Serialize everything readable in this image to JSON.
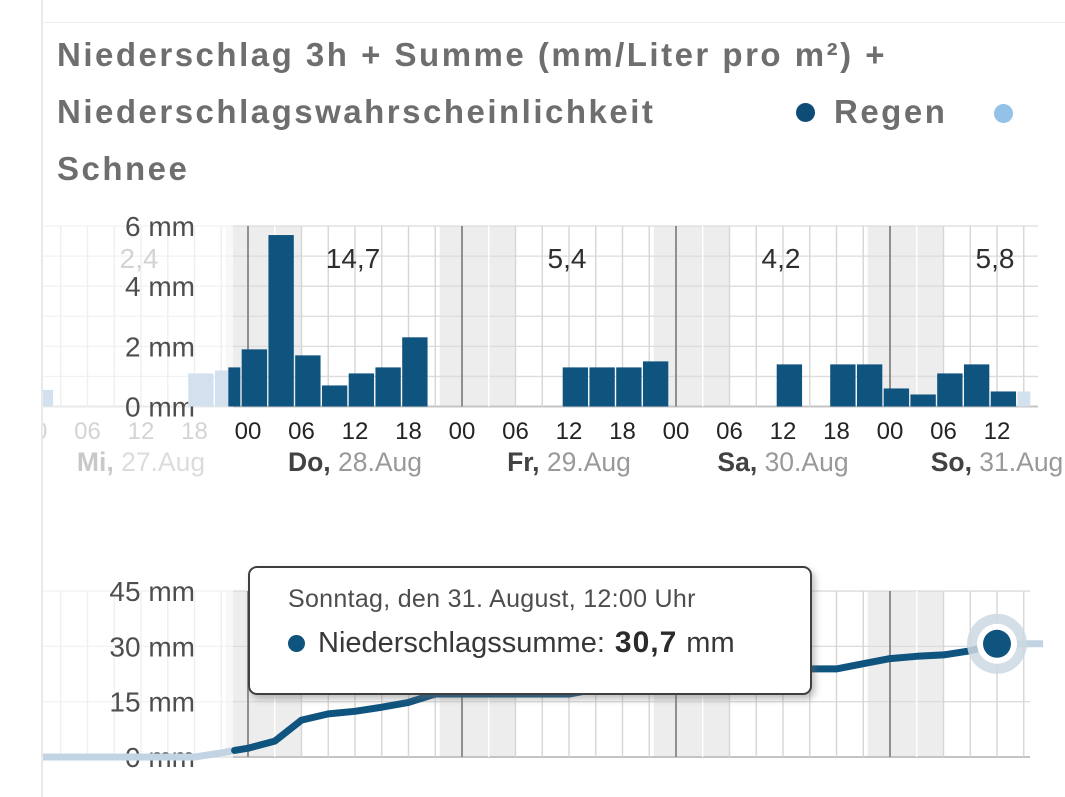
{
  "header": {
    "title_line1": "Niederschlag 3h + Summe (mm/Liter pro m²) +",
    "title_line2": "Niederschlagswahrscheinlichkeit",
    "legend": [
      {
        "label": "Regen",
        "color": "#0d4c77"
      },
      {
        "label": "Schnee",
        "color": "#93c1e7"
      }
    ]
  },
  "tooltip": {
    "title": "Sonntag, den 31. August, 12:00 Uhr",
    "series_label": "Niederschlagssumme:",
    "value": "30,7",
    "unit": "mm"
  },
  "chart_data": [
    {
      "type": "bar",
      "title": "Niederschlag 3h (mm/Liter pro m²)",
      "unit": "mm",
      "ylim": [
        0,
        6
      ],
      "bar_interval_hours": 3,
      "grid": "on",
      "yticks": [
        {
          "mm": 0,
          "label": "0 mm"
        },
        {
          "mm": 2,
          "label": "2 mm"
        },
        {
          "mm": 4,
          "label": "4 mm"
        },
        {
          "mm": 6,
          "label": "6 mm"
        }
      ],
      "hour_ticks": [
        {
          "hour": 0,
          "label": "00"
        },
        {
          "hour": 6,
          "label": "06"
        },
        {
          "hour": 12,
          "label": "12"
        },
        {
          "hour": 18,
          "label": "18"
        }
      ],
      "days": [
        {
          "day": "Mi",
          "date": "27.Aug",
          "sum": "2,4",
          "state": "past"
        },
        {
          "day": "Do",
          "date": "28.Aug",
          "sum": "14,7",
          "state": "forecast"
        },
        {
          "day": "Fr",
          "date": "29.Aug",
          "sum": "5,4",
          "state": "forecast"
        },
        {
          "day": "Sa",
          "date": "30.Aug",
          "sum": "4,2",
          "state": "forecast"
        },
        {
          "day": "So",
          "date": "31.Aug",
          "sum": "5,8",
          "state": "forecast"
        }
      ],
      "bars_3h": [
        {
          "t": 0,
          "mm": 0.55,
          "state": "past"
        },
        {
          "t": 18,
          "mm": 1.1,
          "state": "past"
        },
        {
          "t": 21,
          "mm": 1.2,
          "state": "past"
        },
        {
          "t": 22.5,
          "mm": 1.3,
          "state": "rain",
          "w": 1.5
        },
        {
          "t": 24,
          "mm": 1.9,
          "state": "rain"
        },
        {
          "t": 27,
          "mm": 5.7,
          "state": "rain"
        },
        {
          "t": 30,
          "mm": 1.7,
          "state": "rain"
        },
        {
          "t": 33,
          "mm": 0.7,
          "state": "rain"
        },
        {
          "t": 36,
          "mm": 1.1,
          "state": "rain"
        },
        {
          "t": 39,
          "mm": 1.3,
          "state": "rain"
        },
        {
          "t": 42,
          "mm": 2.3,
          "state": "rain"
        },
        {
          "t": 60,
          "mm": 1.3,
          "state": "rain"
        },
        {
          "t": 63,
          "mm": 1.3,
          "state": "rain"
        },
        {
          "t": 66,
          "mm": 1.3,
          "state": "rain"
        },
        {
          "t": 69,
          "mm": 1.5,
          "state": "rain"
        },
        {
          "t": 84,
          "mm": 1.4,
          "state": "rain"
        },
        {
          "t": 90,
          "mm": 1.4,
          "state": "rain"
        },
        {
          "t": 93,
          "mm": 1.4,
          "state": "rain"
        },
        {
          "t": 96,
          "mm": 0.6,
          "state": "rain"
        },
        {
          "t": 99,
          "mm": 0.4,
          "state": "rain"
        },
        {
          "t": 102,
          "mm": 1.1,
          "state": "rain"
        },
        {
          "t": 105,
          "mm": 1.4,
          "state": "rain"
        },
        {
          "t": 108,
          "mm": 0.5,
          "state": "rain"
        },
        {
          "t": 111,
          "mm": 0.5,
          "state": "past",
          "w": 1.6
        }
      ],
      "colors": {
        "rain": "#0f537f",
        "past": "#d3e1ee",
        "night_band": "#ededed"
      }
    },
    {
      "type": "line",
      "title": "Niederschlagssumme (mm)",
      "unit": "mm",
      "ylim": [
        0,
        48
      ],
      "grid": "on",
      "yticks": [
        {
          "mm": 0,
          "label": "0 mm"
        },
        {
          "mm": 15,
          "label": "15 mm"
        },
        {
          "mm": 30,
          "label": "30 mm"
        },
        {
          "mm": 45,
          "label": "45 mm"
        }
      ],
      "points": [
        [
          0,
          0
        ],
        [
          18,
          0
        ],
        [
          21,
          1.1
        ],
        [
          22.5,
          1.8
        ],
        [
          24,
          2.4
        ],
        [
          27,
          4.3
        ],
        [
          30,
          10.0
        ],
        [
          33,
          11.7
        ],
        [
          36,
          12.4
        ],
        [
          39,
          13.5
        ],
        [
          42,
          14.8
        ],
        [
          45,
          17.1
        ],
        [
          60,
          17.1
        ],
        [
          63,
          18.4
        ],
        [
          66,
          19.7
        ],
        [
          69,
          21.0
        ],
        [
          72,
          22.5
        ],
        [
          84,
          22.5
        ],
        [
          87,
          23.9
        ],
        [
          90,
          23.9
        ],
        [
          93,
          25.3
        ],
        [
          96,
          26.7
        ],
        [
          99,
          27.3
        ],
        [
          102,
          27.7
        ],
        [
          105,
          28.8
        ],
        [
          108,
          30.7
        ]
      ],
      "past_until_t": 22.5,
      "selected_point": {
        "t": 108,
        "mm": 30.7
      },
      "future_tail_end_t": 112.5,
      "colors": {
        "line": "#0f537f",
        "past": "#c2d4e4",
        "halo": "#ccd8e2"
      }
    }
  ]
}
